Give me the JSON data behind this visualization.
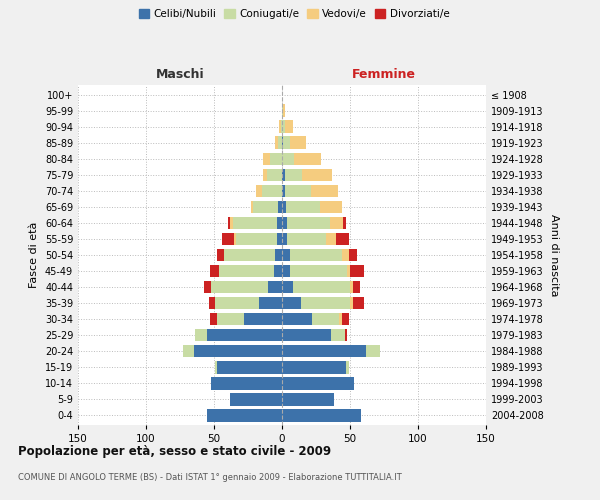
{
  "age_groups": [
    "0-4",
    "5-9",
    "10-14",
    "15-19",
    "20-24",
    "25-29",
    "30-34",
    "35-39",
    "40-44",
    "45-49",
    "50-54",
    "55-59",
    "60-64",
    "65-69",
    "70-74",
    "75-79",
    "80-84",
    "85-89",
    "90-94",
    "95-99",
    "100+"
  ],
  "birth_years": [
    "2004-2008",
    "1999-2003",
    "1994-1998",
    "1989-1993",
    "1984-1988",
    "1979-1983",
    "1974-1978",
    "1969-1973",
    "1964-1968",
    "1959-1963",
    "1954-1958",
    "1949-1953",
    "1944-1948",
    "1939-1943",
    "1934-1938",
    "1929-1933",
    "1924-1928",
    "1919-1923",
    "1914-1918",
    "1909-1913",
    "≤ 1908"
  ],
  "males": {
    "celibi": [
      55,
      38,
      52,
      48,
      65,
      55,
      28,
      17,
      10,
      6,
      5,
      4,
      4,
      3,
      0,
      0,
      0,
      0,
      0,
      0,
      0
    ],
    "coniugati": [
      0,
      0,
      0,
      1,
      8,
      9,
      20,
      32,
      42,
      40,
      38,
      30,
      32,
      18,
      15,
      11,
      9,
      3,
      1,
      0,
      0
    ],
    "vedovi": [
      0,
      0,
      0,
      0,
      0,
      0,
      0,
      0,
      0,
      0,
      0,
      1,
      2,
      2,
      4,
      3,
      5,
      2,
      1,
      0,
      0
    ],
    "divorziati": [
      0,
      0,
      0,
      0,
      0,
      0,
      5,
      5,
      5,
      7,
      5,
      9,
      2,
      0,
      0,
      0,
      0,
      0,
      0,
      0,
      0
    ]
  },
  "females": {
    "nubili": [
      58,
      38,
      53,
      47,
      62,
      36,
      22,
      14,
      8,
      6,
      6,
      4,
      4,
      3,
      2,
      2,
      0,
      1,
      0,
      0,
      0
    ],
    "coniugate": [
      0,
      0,
      0,
      2,
      10,
      10,
      20,
      36,
      42,
      42,
      38,
      28,
      31,
      25,
      19,
      13,
      9,
      5,
      2,
      1,
      0
    ],
    "vedove": [
      0,
      0,
      0,
      0,
      0,
      0,
      2,
      2,
      2,
      2,
      5,
      8,
      10,
      16,
      20,
      22,
      20,
      12,
      6,
      1,
      0
    ],
    "divorziate": [
      0,
      0,
      0,
      0,
      0,
      2,
      5,
      8,
      5,
      10,
      6,
      9,
      2,
      0,
      0,
      0,
      0,
      0,
      0,
      0,
      0
    ]
  },
  "colors": {
    "celibi": "#3d72aa",
    "coniugati": "#c8dca4",
    "vedovi": "#f5cc7f",
    "divorziati": "#cc2222"
  },
  "title": "Popolazione per età, sesso e stato civile - 2009",
  "subtitle": "COMUNE DI ANGOLO TERME (BS) - Dati ISTAT 1° gennaio 2009 - Elaborazione TUTTITALIA.IT",
  "xlabel_left": "Maschi",
  "xlabel_right": "Femmine",
  "ylabel_left": "Fasce di età",
  "ylabel_right": "Anni di nascita",
  "xlim": 150,
  "legend_labels": [
    "Celibi/Nubili",
    "Coniugati/e",
    "Vedovi/e",
    "Divorziati/e"
  ],
  "bg_color": "#f0f0f0",
  "plot_bg_color": "#ffffff"
}
